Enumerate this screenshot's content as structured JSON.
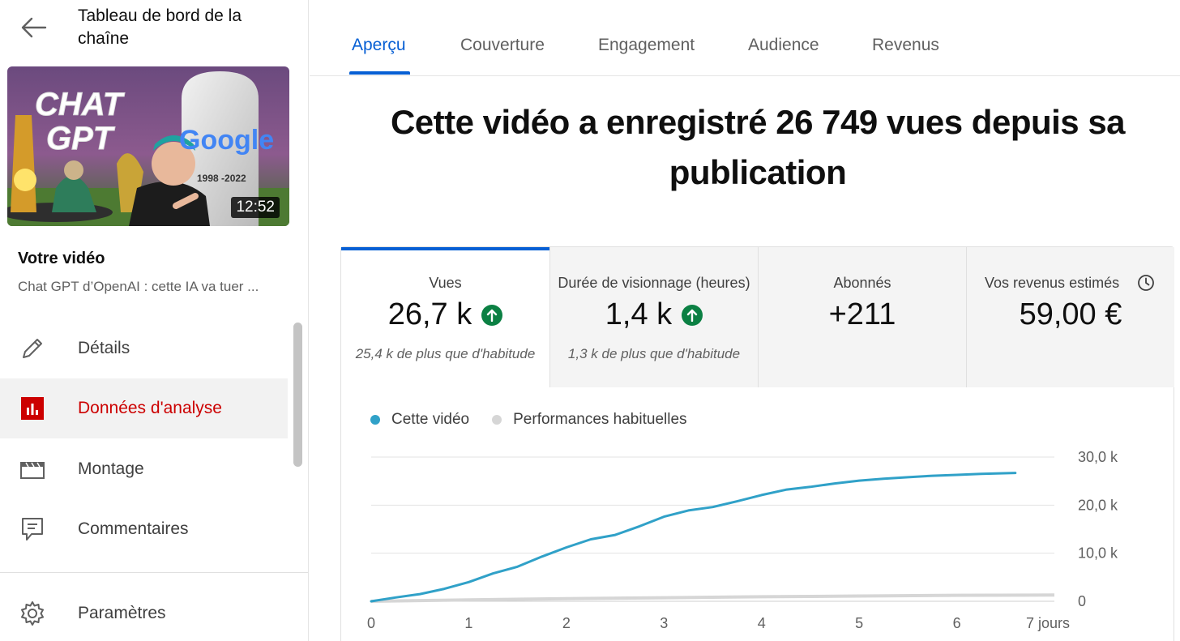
{
  "sidebar": {
    "channel_title": "Tableau de bord de la chaîne",
    "thumbnail": {
      "text_chat": "CHAT",
      "text_gpt": "GPT",
      "text_google": "Google",
      "text_years": "1998 -2022",
      "duration": "12:52"
    },
    "your_video_label": "Votre vidéo",
    "video_title": "Chat GPT d’OpenAI : cette IA va tuer ...",
    "nav": [
      {
        "label": "Détails",
        "icon": "pencil-icon"
      },
      {
        "label": "Données d'analyse",
        "icon": "analytics-icon",
        "active": true
      },
      {
        "label": "Montage",
        "icon": "clapperboard-icon"
      },
      {
        "label": "Commentaires",
        "icon": "comment-icon"
      },
      {
        "label": "Paramètres",
        "icon": "gear-icon"
      }
    ]
  },
  "tabs": [
    {
      "label": "Aperçu",
      "active": true
    },
    {
      "label": "Couverture"
    },
    {
      "label": "Engagement"
    },
    {
      "label": "Audience"
    },
    {
      "label": "Revenus"
    }
  ],
  "headline": "Cette vidéo a enregistré 26 749 vues depuis sa publication",
  "metrics": [
    {
      "label": "Vues",
      "value": "26,7 k",
      "trend": "up",
      "sub": "25,4 k de plus que d'habitude"
    },
    {
      "label": "Durée de visionnage (heures)",
      "value": "1,4 k",
      "trend": "up",
      "sub": "1,3 k de plus que d'habitude"
    },
    {
      "label": "Abonnés",
      "value": "+211"
    },
    {
      "label": "Vos revenus estimés",
      "value": "59,00 €",
      "icon": "clock-icon"
    }
  ],
  "colors": {
    "accent": "#065fd4",
    "active_nav": "#cc0000",
    "series_video": "#30a1c8",
    "series_typical": "#d6d6d6",
    "trend_up": "#0b8043"
  },
  "chart_data": {
    "type": "line",
    "legend": [
      "Cette vidéo",
      "Performances habituelles"
    ],
    "y_ticks": [
      "30,0 k",
      "20,0 k",
      "10,0 k",
      "0"
    ],
    "x_ticks": [
      "0",
      "1",
      "2",
      "3",
      "4",
      "5",
      "6",
      "7 jours"
    ],
    "xlim": [
      0,
      7
    ],
    "ylim": [
      0,
      30000
    ],
    "series": [
      {
        "name": "Cette vidéo",
        "x": [
          0,
          0.25,
          0.5,
          0.75,
          1.0,
          1.25,
          1.5,
          1.75,
          2.0,
          2.25,
          2.5,
          2.75,
          3.0,
          3.25,
          3.5,
          3.75,
          4.0,
          4.25,
          4.5,
          4.75,
          5.0,
          5.25,
          5.5,
          5.75,
          6.0,
          6.25,
          6.6
        ],
        "values": [
          0,
          800,
          1500,
          2600,
          4000,
          5800,
          7200,
          9300,
          11200,
          12900,
          13800,
          15600,
          17600,
          18900,
          19600,
          20800,
          22100,
          23200,
          23800,
          24500,
          25100,
          25500,
          25800,
          26100,
          26300,
          26500,
          26700
        ]
      },
      {
        "name": "Performances habituelles",
        "x": [
          0,
          1,
          2,
          3,
          4,
          5,
          6,
          7
        ],
        "values": [
          0,
          300,
          550,
          750,
          950,
          1100,
          1250,
          1300
        ]
      }
    ]
  }
}
